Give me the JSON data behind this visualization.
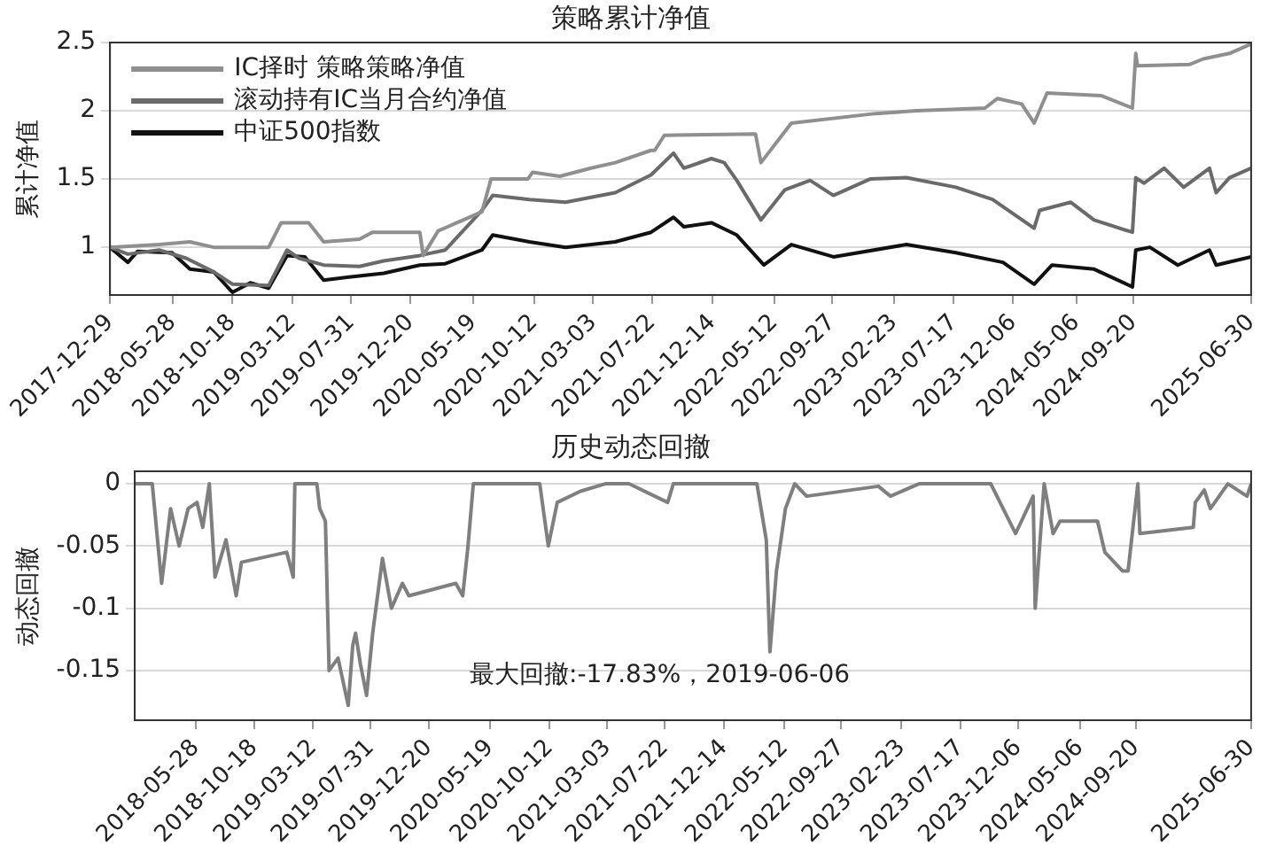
{
  "chart_data": [
    {
      "type": "line",
      "title": "策略累计净值",
      "ylabel": "累计净值",
      "grid": "y",
      "legend": "top left",
      "line_style": "solid",
      "marker": "none",
      "xlim": [
        "2017-12-29",
        "2025-06-30"
      ],
      "ylim": [
        0.65,
        2.5
      ],
      "yticks": [
        1,
        1.5,
        2,
        2.5
      ],
      "xticks": [
        "2017-12-29",
        "2018-05-28",
        "2018-10-18",
        "2019-03-12",
        "2019-07-31",
        "2019-12-20",
        "2020-05-19",
        "2020-10-12",
        "2021-03-03",
        "2021-07-22",
        "2021-12-14",
        "2022-05-12",
        "2022-09-27",
        "2023-02-23",
        "2023-07-17",
        "2023-12-06",
        "2024-05-06",
        "2024-09-20",
        "2025-06-30"
      ],
      "series": [
        {
          "name": "IC择时 策略策略净值",
          "color": "#8f8f8f",
          "x": [
            "2017-12-29",
            "2018-04-26",
            "2018-07-09",
            "2018-09-04",
            "2019-01-14",
            "2019-02-13",
            "2019-04-20",
            "2019-05-26",
            "2019-08-20",
            "2019-09-20",
            "2020-01-12",
            "2020-01-20",
            "2020-02-25",
            "2020-06-09",
            "2020-07-01",
            "2020-09-27",
            "2020-10-09",
            "2020-12-13",
            "2021-02-26",
            "2021-04-25",
            "2021-07-20",
            "2021-07-29",
            "2021-08-21",
            "2022-03-28",
            "2022-04-10",
            "2022-06-22",
            "2023-01-11",
            "2023-04-19",
            "2023-09-30",
            "2023-10-30",
            "2023-12-27",
            "2024-01-26",
            "2024-02-26",
            "2024-07-06",
            "2024-09-18",
            "2024-09-26",
            "2024-09-30",
            "2025-02-03",
            "2025-03-07",
            "2025-05-09",
            "2025-06-30"
          ],
          "values": [
            1.0,
            1.02,
            1.04,
            1.0,
            1.0,
            1.18,
            1.18,
            1.04,
            1.06,
            1.11,
            1.11,
            0.94,
            1.12,
            1.26,
            1.5,
            1.5,
            1.55,
            1.52,
            1.58,
            1.62,
            1.71,
            1.71,
            1.82,
            1.83,
            1.62,
            1.91,
            1.98,
            2.0,
            2.02,
            2.09,
            2.05,
            1.91,
            2.13,
            2.11,
            2.02,
            2.42,
            2.33,
            2.34,
            2.38,
            2.42,
            2.49
          ]
        },
        {
          "name": "滚动持有IC当月合约净值",
          "color": "#6a6a6a",
          "x": [
            "2017-12-29",
            "2018-02-10",
            "2018-04-26",
            "2018-06-30",
            "2018-09-04",
            "2018-10-19",
            "2019-01-14",
            "2019-02-27",
            "2019-03-28",
            "2019-05-26",
            "2019-08-20",
            "2019-10-17",
            "2020-01-12",
            "2020-03-13",
            "2020-06-09",
            "2020-07-05",
            "2020-10-01",
            "2020-12-27",
            "2021-04-25",
            "2021-07-20",
            "2021-09-12",
            "2021-10-07",
            "2021-12-12",
            "2022-01-12",
            "2022-02-11",
            "2022-04-10",
            "2022-06-06",
            "2022-08-06",
            "2022-10-01",
            "2022-12-28",
            "2023-03-25",
            "2023-07-22",
            "2023-10-18",
            "2024-01-26",
            "2024-02-08",
            "2024-04-23",
            "2024-06-18",
            "2024-09-18",
            "2024-09-26",
            "2024-10-16",
            "2024-12-03",
            "2025-01-19",
            "2025-03-22",
            "2025-04-07",
            "2025-05-09",
            "2025-06-30"
          ],
          "values": [
            1.0,
            0.95,
            0.98,
            0.92,
            0.82,
            0.73,
            0.72,
            0.98,
            0.92,
            0.87,
            0.86,
            0.9,
            0.94,
            0.98,
            1.27,
            1.38,
            1.35,
            1.33,
            1.4,
            1.53,
            1.69,
            1.58,
            1.65,
            1.62,
            1.49,
            1.2,
            1.42,
            1.49,
            1.38,
            1.5,
            1.51,
            1.44,
            1.35,
            1.14,
            1.27,
            1.33,
            1.2,
            1.11,
            1.51,
            1.47,
            1.58,
            1.44,
            1.58,
            1.4,
            1.51,
            1.58
          ]
        },
        {
          "name": "中证500指数",
          "color": "#111111",
          "x": [
            "2017-12-29",
            "2018-02-10",
            "2018-03-05",
            "2018-05-27",
            "2018-07-09",
            "2018-09-04",
            "2018-10-19",
            "2018-12-01",
            "2019-01-14",
            "2019-02-27",
            "2019-04-11",
            "2019-05-26",
            "2019-07-21",
            "2019-10-17",
            "2020-01-12",
            "2020-03-13",
            "2020-06-09",
            "2020-07-05",
            "2020-10-01",
            "2020-12-27",
            "2021-04-25",
            "2021-07-20",
            "2021-09-12",
            "2021-10-07",
            "2021-12-12",
            "2022-02-11",
            "2022-04-17",
            "2022-06-22",
            "2022-10-01",
            "2023-03-25",
            "2023-07-22",
            "2023-11-12",
            "2024-01-26",
            "2024-03-09",
            "2024-06-18",
            "2024-09-18",
            "2024-09-26",
            "2024-10-30",
            "2025-01-05",
            "2025-03-22",
            "2025-04-07",
            "2025-06-30"
          ],
          "values": [
            1.0,
            0.89,
            0.97,
            0.96,
            0.84,
            0.82,
            0.67,
            0.74,
            0.7,
            0.94,
            0.93,
            0.76,
            0.78,
            0.81,
            0.87,
            0.88,
            0.98,
            1.09,
            1.04,
            1.0,
            1.04,
            1.11,
            1.22,
            1.15,
            1.18,
            1.09,
            0.87,
            1.02,
            0.93,
            1.02,
            0.96,
            0.89,
            0.73,
            0.87,
            0.84,
            0.71,
            0.98,
            1.0,
            0.87,
            0.98,
            0.87,
            0.93
          ]
        }
      ]
    },
    {
      "type": "line",
      "title": "历史动态回撤",
      "ylabel": "动态回撤",
      "grid": "y",
      "line_style": "solid",
      "marker": "none",
      "xlim": [
        "2017-12-29",
        "2025-06-30"
      ],
      "ylim": [
        -0.19,
        0.01
      ],
      "yticks": [
        -0.15,
        -0.1,
        -0.05,
        0
      ],
      "xticks": [
        "2018-05-28",
        "2018-10-18",
        "2019-03-12",
        "2019-07-31",
        "2019-12-20",
        "2020-05-19",
        "2020-10-12",
        "2021-03-03",
        "2021-07-22",
        "2021-12-14",
        "2022-05-12",
        "2022-09-27",
        "2023-02-23",
        "2023-07-17",
        "2023-12-06",
        "2024-05-06",
        "2024-09-20",
        "2025-06-30"
      ],
      "annotations": [
        "最大回撤:-17.83%，2019-06-06"
      ],
      "series": [
        {
          "color": "#7f7f7f",
          "x": [
            "2017-12-29",
            "2018-02-10",
            "2018-03-05",
            "2018-03-27",
            "2018-04-17",
            "2018-05-09",
            "2018-05-31",
            "2018-06-14",
            "2018-06-30",
            "2018-07-14",
            "2018-08-10",
            "2018-09-04",
            "2018-09-17",
            "2019-01-06",
            "2019-01-22",
            "2019-01-26",
            "2019-03-21",
            "2019-03-28",
            "2019-04-11",
            "2019-04-20",
            "2019-05-12",
            "2019-06-06",
            "2019-06-17",
            "2019-06-24",
            "2019-07-06",
            "2019-07-21",
            "2019-08-05",
            "2019-08-29",
            "2019-09-20",
            "2019-10-17",
            "2019-11-02",
            "2020-02-25",
            "2020-03-13",
            "2020-03-26",
            "2020-04-08",
            "2020-09-18",
            "2020-10-09",
            "2020-10-31",
            "2020-12-27",
            "2021-02-26",
            "2021-04-25",
            "2021-07-29",
            "2021-08-12",
            "2022-03-05",
            "2022-03-28",
            "2022-04-06",
            "2022-04-22",
            "2022-05-14",
            "2022-06-06",
            "2022-07-05",
            "2022-12-28",
            "2023-01-27",
            "2023-04-07",
            "2023-09-30",
            "2023-11-30",
            "2024-01-12",
            "2024-01-17",
            "2024-02-08",
            "2024-03-01",
            "2024-03-18",
            "2024-06-18",
            "2024-07-06",
            "2024-08-18",
            "2024-09-01",
            "2024-09-25",
            "2024-09-30",
            "2025-02-08",
            "2025-02-13",
            "2025-03-07",
            "2025-03-22",
            "2025-05-04",
            "2025-06-20",
            "2025-06-30"
          ],
          "values": [
            0,
            0,
            -0.08,
            -0.02,
            -0.05,
            -0.02,
            -0.015,
            -0.035,
            0,
            -0.075,
            -0.045,
            -0.09,
            -0.063,
            -0.055,
            -0.075,
            0,
            0,
            -0.02,
            -0.03,
            -0.15,
            -0.14,
            -0.178,
            -0.13,
            -0.12,
            -0.145,
            -0.17,
            -0.12,
            -0.06,
            -0.1,
            -0.08,
            -0.09,
            -0.08,
            -0.09,
            -0.05,
            0,
            0,
            -0.05,
            -0.015,
            -0.006,
            0,
            0,
            -0.015,
            0,
            0,
            -0.045,
            -0.135,
            -0.07,
            -0.02,
            0,
            -0.01,
            -0.002,
            -0.01,
            0,
            0,
            -0.04,
            -0.01,
            -0.1,
            0,
            -0.04,
            -0.03,
            -0.03,
            -0.055,
            -0.07,
            -0.07,
            0,
            -0.04,
            -0.035,
            -0.015,
            -0.005,
            -0.02,
            0,
            -0.01,
            0
          ]
        }
      ]
    }
  ]
}
